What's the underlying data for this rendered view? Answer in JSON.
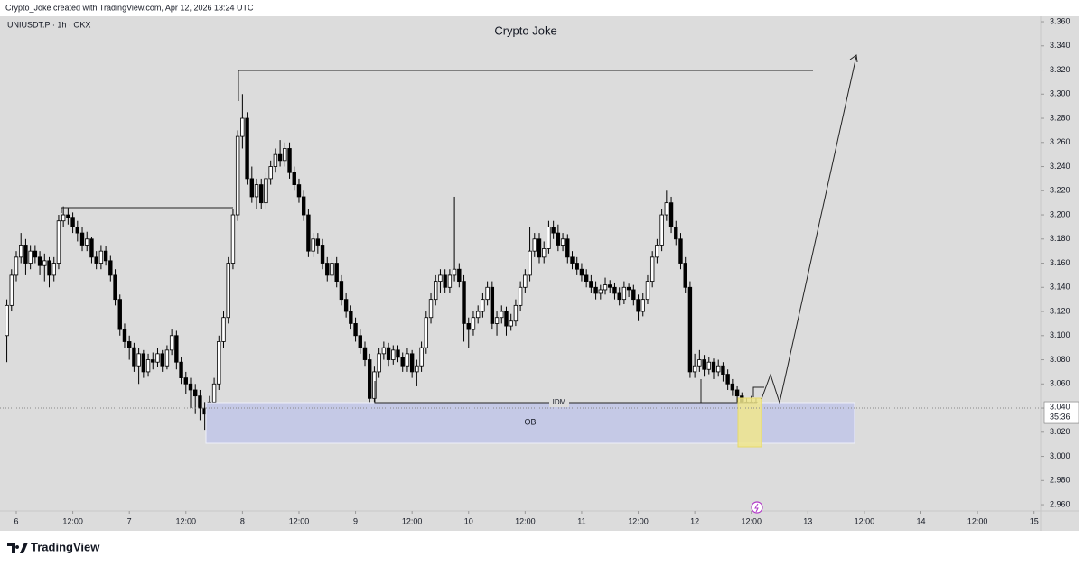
{
  "chart_data": {
    "type": "candlestick",
    "header": "Crypto_Joke created with TradingView.com, Apr 12, 2026 13:24 UTC",
    "symbol": "UNIUSDT.P · 1h · OKX",
    "title": "Crypto Joke",
    "annotations": {
      "idm": "IDM",
      "ob": "OB"
    },
    "last_price": {
      "value": 3.04,
      "label": "3.040"
    },
    "countdown": "35:36",
    "logo": "TradingView",
    "up_color": "#ffffff",
    "down_color": "#000000",
    "ylim": [
      2.9548,
      3.3645
    ],
    "yticks": [
      {
        "value": 2.96,
        "label": "2.960"
      },
      {
        "value": 2.98,
        "label": "2.980"
      },
      {
        "value": 3.0,
        "label": "3.000"
      },
      {
        "value": 3.02,
        "label": "3.020"
      },
      {
        "value": 3.04,
        "label": "3.040"
      },
      {
        "value": 3.06,
        "label": "3.060"
      },
      {
        "value": 3.08,
        "label": "3.080"
      },
      {
        "value": 3.1,
        "label": "3.100"
      },
      {
        "value": 3.12,
        "label": "3.120"
      },
      {
        "value": 3.14,
        "label": "3.140"
      },
      {
        "value": 3.16,
        "label": "3.160"
      },
      {
        "value": 3.18,
        "label": "3.180"
      },
      {
        "value": 3.2,
        "label": "3.200"
      },
      {
        "value": 3.22,
        "label": "3.220"
      },
      {
        "value": 3.24,
        "label": "3.240"
      },
      {
        "value": 3.26,
        "label": "3.260"
      },
      {
        "value": 3.28,
        "label": "3.280"
      },
      {
        "value": 3.3,
        "label": "3.300"
      },
      {
        "value": 3.32,
        "label": "3.320"
      },
      {
        "value": 3.34,
        "label": "3.340"
      },
      {
        "value": 3.36,
        "label": "3.360"
      }
    ],
    "xlim": [
      -3.45,
      217.4
    ],
    "xticks": [
      {
        "value": 0,
        "label": "6"
      },
      {
        "value": 12,
        "label": "12:00"
      },
      {
        "value": 24,
        "label": "7"
      },
      {
        "value": 36,
        "label": "12:00"
      },
      {
        "value": 48,
        "label": "8"
      },
      {
        "value": 60,
        "label": "12:00"
      },
      {
        "value": 72,
        "label": "9"
      },
      {
        "value": 84,
        "label": "12:00"
      },
      {
        "value": 96,
        "label": "10"
      },
      {
        "value": 108,
        "label": "12:00"
      },
      {
        "value": 120,
        "label": "11"
      },
      {
        "value": 132,
        "label": "12:00"
      },
      {
        "value": 144,
        "label": "12"
      },
      {
        "value": 156,
        "label": "12:00"
      },
      {
        "value": 168,
        "label": "13"
      },
      {
        "value": 180,
        "label": "12:00"
      },
      {
        "value": 192,
        "label": "14"
      },
      {
        "value": 204,
        "label": "12:00"
      },
      {
        "value": 216,
        "label": "15"
      }
    ],
    "x": [
      -2,
      -1,
      0,
      1,
      2,
      3,
      4,
      5,
      6,
      7,
      8,
      9,
      10,
      11,
      12,
      13,
      14,
      15,
      16,
      17,
      18,
      19,
      20,
      21,
      22,
      23,
      24,
      25,
      26,
      27,
      28,
      29,
      30,
      31,
      32,
      33,
      34,
      35,
      36,
      37,
      38,
      39,
      40,
      41,
      42,
      43,
      44,
      45,
      46,
      47,
      48,
      49,
      50,
      51,
      52,
      53,
      54,
      55,
      56,
      57,
      58,
      59,
      60,
      61,
      62,
      63,
      64,
      65,
      66,
      67,
      68,
      69,
      70,
      71,
      72,
      73,
      74,
      75,
      76,
      77,
      78,
      79,
      80,
      81,
      82,
      83,
      84,
      85,
      86,
      87,
      88,
      89,
      90,
      91,
      92,
      93,
      94,
      95,
      96,
      97,
      98,
      99,
      100,
      101,
      102,
      103,
      104,
      105,
      106,
      107,
      108,
      109,
      110,
      111,
      112,
      113,
      114,
      115,
      116,
      117,
      118,
      119,
      120,
      121,
      122,
      123,
      124,
      125,
      126,
      127,
      128,
      129,
      130,
      131,
      132,
      133,
      134,
      135,
      136,
      137,
      138,
      139,
      140,
      141,
      142,
      143,
      144,
      145,
      146,
      147,
      148,
      149,
      150,
      151,
      152,
      153,
      154,
      155,
      156,
      157
    ],
    "ohlc": [
      [
        3.1,
        3.13,
        3.078,
        3.125
      ],
      [
        3.125,
        3.155,
        3.12,
        3.15
      ],
      [
        3.15,
        3.17,
        3.145,
        3.165
      ],
      [
        3.165,
        3.185,
        3.16,
        3.175
      ],
      [
        3.175,
        3.18,
        3.15,
        3.16
      ],
      [
        3.16,
        3.175,
        3.155,
        3.17
      ],
      [
        3.17,
        3.175,
        3.16,
        3.165
      ],
      [
        3.165,
        3.17,
        3.15,
        3.158
      ],
      [
        3.158,
        3.168,
        3.145,
        3.162
      ],
      [
        3.162,
        3.165,
        3.14,
        3.15
      ],
      [
        3.15,
        3.165,
        3.145,
        3.16
      ],
      [
        3.16,
        3.2,
        3.155,
        3.195
      ],
      [
        3.195,
        3.207,
        3.19,
        3.2
      ],
      [
        3.2,
        3.206,
        3.192,
        3.198
      ],
      [
        3.198,
        3.202,
        3.185,
        3.19
      ],
      [
        3.19,
        3.195,
        3.178,
        3.185
      ],
      [
        3.185,
        3.19,
        3.17,
        3.175
      ],
      [
        3.175,
        3.186,
        3.17,
        3.18
      ],
      [
        3.18,
        3.182,
        3.16,
        3.165
      ],
      [
        3.165,
        3.17,
        3.155,
        3.16
      ],
      [
        3.16,
        3.175,
        3.155,
        3.17
      ],
      [
        3.17,
        3.174,
        3.158,
        3.162
      ],
      [
        3.162,
        3.166,
        3.145,
        3.15
      ],
      [
        3.15,
        3.155,
        3.125,
        3.13
      ],
      [
        3.13,
        3.134,
        3.1,
        3.105
      ],
      [
        3.105,
        3.11,
        3.09,
        3.095
      ],
      [
        3.095,
        3.1,
        3.08,
        3.09
      ],
      [
        3.09,
        3.094,
        3.07,
        3.075
      ],
      [
        3.075,
        3.09,
        3.06,
        3.085
      ],
      [
        3.085,
        3.088,
        3.065,
        3.07
      ],
      [
        3.07,
        3.085,
        3.066,
        3.08
      ],
      [
        3.08,
        3.086,
        3.072,
        3.078
      ],
      [
        3.078,
        3.09,
        3.074,
        3.085
      ],
      [
        3.085,
        3.088,
        3.07,
        3.075
      ],
      [
        3.075,
        3.092,
        3.072,
        3.088
      ],
      [
        3.088,
        3.105,
        3.084,
        3.1
      ],
      [
        3.1,
        3.104,
        3.072,
        3.078
      ],
      [
        3.078,
        3.082,
        3.06,
        3.065
      ],
      [
        3.065,
        3.07,
        3.052,
        3.06
      ],
      [
        3.06,
        3.065,
        3.04,
        3.055
      ],
      [
        3.055,
        3.06,
        3.035,
        3.05
      ],
      [
        3.05,
        3.055,
        3.03,
        3.04
      ],
      [
        3.04,
        3.045,
        3.022,
        3.035
      ],
      [
        3.035,
        3.05,
        3.03,
        3.045
      ],
      [
        3.045,
        3.065,
        3.04,
        3.06
      ],
      [
        3.06,
        3.1,
        3.055,
        3.095
      ],
      [
        3.095,
        3.12,
        3.09,
        3.115
      ],
      [
        3.115,
        3.165,
        3.11,
        3.16
      ],
      [
        3.16,
        3.205,
        3.155,
        3.2
      ],
      [
        3.2,
        3.27,
        3.195,
        3.265
      ],
      [
        3.265,
        3.3,
        3.255,
        3.28
      ],
      [
        3.28,
        3.285,
        3.225,
        3.23
      ],
      [
        3.23,
        3.24,
        3.21,
        3.215
      ],
      [
        3.215,
        3.23,
        3.205,
        3.225
      ],
      [
        3.225,
        3.23,
        3.205,
        3.21
      ],
      [
        3.21,
        3.235,
        3.205,
        3.23
      ],
      [
        3.23,
        3.245,
        3.225,
        3.24
      ],
      [
        3.24,
        3.255,
        3.235,
        3.25
      ],
      [
        3.25,
        3.262,
        3.24,
        3.245
      ],
      [
        3.245,
        3.26,
        3.24,
        3.255
      ],
      [
        3.255,
        3.26,
        3.23,
        3.235
      ],
      [
        3.235,
        3.24,
        3.22,
        3.225
      ],
      [
        3.225,
        3.23,
        3.21,
        3.215
      ],
      [
        3.215,
        3.22,
        3.195,
        3.2
      ],
      [
        3.2,
        3.205,
        3.165,
        3.17
      ],
      [
        3.17,
        3.185,
        3.165,
        3.18
      ],
      [
        3.18,
        3.185,
        3.168,
        3.175
      ],
      [
        3.175,
        3.18,
        3.155,
        3.16
      ],
      [
        3.16,
        3.165,
        3.145,
        3.15
      ],
      [
        3.15,
        3.165,
        3.145,
        3.16
      ],
      [
        3.16,
        3.165,
        3.14,
        3.145
      ],
      [
        3.145,
        3.15,
        3.125,
        3.13
      ],
      [
        3.13,
        3.135,
        3.115,
        3.12
      ],
      [
        3.12,
        3.125,
        3.105,
        3.11
      ],
      [
        3.11,
        3.115,
        3.095,
        3.1
      ],
      [
        3.1,
        3.105,
        3.085,
        3.09
      ],
      [
        3.09,
        3.095,
        3.075,
        3.08
      ],
      [
        3.08,
        3.085,
        3.045,
        3.048
      ],
      [
        3.048,
        3.075,
        3.045,
        3.07
      ],
      [
        3.07,
        3.09,
        3.065,
        3.085
      ],
      [
        3.085,
        3.095,
        3.08,
        3.09
      ],
      [
        3.09,
        3.094,
        3.075,
        3.08
      ],
      [
        3.08,
        3.092,
        3.076,
        3.088
      ],
      [
        3.088,
        3.092,
        3.078,
        3.082
      ],
      [
        3.082,
        3.086,
        3.07,
        3.075
      ],
      [
        3.075,
        3.09,
        3.07,
        3.085
      ],
      [
        3.085,
        3.088,
        3.065,
        3.07
      ],
      [
        3.07,
        3.08,
        3.058,
        3.075
      ],
      [
        3.075,
        3.095,
        3.07,
        3.09
      ],
      [
        3.09,
        3.12,
        3.085,
        3.115
      ],
      [
        3.115,
        3.135,
        3.11,
        3.13
      ],
      [
        3.13,
        3.15,
        3.125,
        3.145
      ],
      [
        3.145,
        3.155,
        3.135,
        3.15
      ],
      [
        3.15,
        3.155,
        3.135,
        3.14
      ],
      [
        3.14,
        3.155,
        3.135,
        3.15
      ],
      [
        3.15,
        3.215,
        3.145,
        3.155
      ],
      [
        3.155,
        3.16,
        3.14,
        3.145
      ],
      [
        3.145,
        3.15,
        3.095,
        3.11
      ],
      [
        3.11,
        3.115,
        3.09,
        3.105
      ],
      [
        3.105,
        3.12,
        3.1,
        3.115
      ],
      [
        3.115,
        3.125,
        3.11,
        3.12
      ],
      [
        3.12,
        3.135,
        3.115,
        3.13
      ],
      [
        3.13,
        3.145,
        3.125,
        3.14
      ],
      [
        3.14,
        3.145,
        3.105,
        3.11
      ],
      [
        3.11,
        3.12,
        3.1,
        3.115
      ],
      [
        3.115,
        3.125,
        3.11,
        3.12
      ],
      [
        3.12,
        3.124,
        3.1,
        3.108
      ],
      [
        3.108,
        3.118,
        3.104,
        3.112
      ],
      [
        3.112,
        3.13,
        3.108,
        3.125
      ],
      [
        3.125,
        3.145,
        3.12,
        3.14
      ],
      [
        3.14,
        3.155,
        3.135,
        3.15
      ],
      [
        3.15,
        3.19,
        3.145,
        3.17
      ],
      [
        3.17,
        3.185,
        3.165,
        3.18
      ],
      [
        3.18,
        3.185,
        3.16,
        3.165
      ],
      [
        3.165,
        3.178,
        3.16,
        3.172
      ],
      [
        3.172,
        3.195,
        3.168,
        3.19
      ],
      [
        3.19,
        3.195,
        3.18,
        3.185
      ],
      [
        3.185,
        3.192,
        3.17,
        3.175
      ],
      [
        3.175,
        3.185,
        3.17,
        3.18
      ],
      [
        3.18,
        3.184,
        3.16,
        3.165
      ],
      [
        3.165,
        3.17,
        3.155,
        3.16
      ],
      [
        3.16,
        3.165,
        3.15,
        3.155
      ],
      [
        3.155,
        3.16,
        3.145,
        3.15
      ],
      [
        3.15,
        3.155,
        3.14,
        3.145
      ],
      [
        3.145,
        3.15,
        3.135,
        3.14
      ],
      [
        3.14,
        3.145,
        3.13,
        3.135
      ],
      [
        3.135,
        3.142,
        3.13,
        3.138
      ],
      [
        3.138,
        3.148,
        3.134,
        3.142
      ],
      [
        3.142,
        3.146,
        3.135,
        3.14
      ],
      [
        3.14,
        3.144,
        3.13,
        3.135
      ],
      [
        3.135,
        3.14,
        3.125,
        3.13
      ],
      [
        3.13,
        3.145,
        3.126,
        3.14
      ],
      [
        3.14,
        3.143,
        3.132,
        3.138
      ],
      [
        3.138,
        3.142,
        3.125,
        3.13
      ],
      [
        3.13,
        3.134,
        3.112,
        3.12
      ],
      [
        3.12,
        3.135,
        3.116,
        3.13
      ],
      [
        3.13,
        3.15,
        3.126,
        3.145
      ],
      [
        3.145,
        3.17,
        3.14,
        3.165
      ],
      [
        3.165,
        3.18,
        3.16,
        3.175
      ],
      [
        3.175,
        3.205,
        3.17,
        3.2
      ],
      [
        3.2,
        3.22,
        3.195,
        3.21
      ],
      [
        3.21,
        3.215,
        3.185,
        3.19
      ],
      [
        3.19,
        3.195,
        3.175,
        3.18
      ],
      [
        3.18,
        3.185,
        3.155,
        3.16
      ],
      [
        3.16,
        3.165,
        3.135,
        3.14
      ],
      [
        3.14,
        3.145,
        3.065,
        3.07
      ],
      [
        3.07,
        3.085,
        3.065,
        3.075
      ],
      [
        3.075,
        3.088,
        3.07,
        3.08
      ],
      [
        3.08,
        3.084,
        3.066,
        3.072
      ],
      [
        3.072,
        3.082,
        3.068,
        3.078
      ],
      [
        3.078,
        3.081,
        3.064,
        3.07
      ],
      [
        3.07,
        3.08,
        3.066,
        3.075
      ],
      [
        3.075,
        3.078,
        3.062,
        3.068
      ],
      [
        3.068,
        3.072,
        3.055,
        3.06
      ],
      [
        3.06,
        3.064,
        3.05,
        3.055
      ],
      [
        3.055,
        3.058,
        3.045,
        3.05
      ],
      [
        3.05,
        3.053,
        3.04,
        3.045
      ],
      [
        3.045,
        3.048,
        3.03,
        3.035
      ],
      [
        3.035,
        3.05,
        3.03,
        3.045
      ],
      [
        3.045,
        3.048,
        3.015,
        3.04
      ]
    ]
  }
}
